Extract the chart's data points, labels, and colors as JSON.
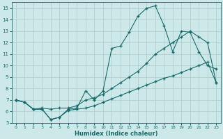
{
  "xlabel": "Humidex (Indice chaleur)",
  "bg_color": "#cce8e8",
  "grid_color": "#aacccc",
  "line_color": "#1a6b6b",
  "xlim": [
    -0.5,
    23.5
  ],
  "ylim": [
    5,
    15.5
  ],
  "yticks": [
    5,
    6,
    7,
    8,
    9,
    10,
    11,
    12,
    13,
    14,
    15
  ],
  "xticks": [
    0,
    1,
    2,
    3,
    4,
    5,
    6,
    7,
    8,
    9,
    10,
    11,
    12,
    13,
    14,
    15,
    16,
    17,
    18,
    19,
    20,
    21,
    22,
    23
  ],
  "line1_x": [
    0,
    1,
    2,
    3,
    4,
    5,
    6,
    7,
    8,
    9,
    10,
    11,
    12,
    13,
    14,
    15,
    16,
    17,
    18,
    19,
    20,
    21,
    22,
    23
  ],
  "line1_y": [
    7.0,
    6.8,
    6.2,
    6.2,
    5.3,
    5.5,
    6.2,
    6.3,
    7.8,
    7.0,
    7.8,
    11.5,
    11.7,
    12.9,
    14.3,
    15.0,
    15.2,
    13.5,
    11.2,
    13.0,
    12.9,
    11.2,
    10.0,
    9.7
  ],
  "line2_x": [
    0,
    1,
    2,
    3,
    4,
    5,
    6,
    7,
    8,
    9,
    10,
    11,
    12,
    13,
    14,
    15,
    16,
    17,
    18,
    19,
    20,
    21,
    22,
    23
  ],
  "line2_y": [
    7.0,
    6.8,
    6.2,
    6.3,
    6.2,
    6.3,
    6.3,
    6.5,
    7.0,
    7.2,
    7.5,
    8.0,
    8.5,
    9.0,
    9.5,
    10.2,
    11.0,
    11.5,
    12.0,
    12.5,
    13.0,
    12.5,
    12.0,
    8.5
  ],
  "line3_x": [
    0,
    1,
    2,
    3,
    4,
    5,
    6,
    7,
    8,
    9,
    10,
    11,
    12,
    13,
    14,
    15,
    16,
    17,
    18,
    19,
    20,
    21,
    22,
    23
  ],
  "line3_y": [
    7.0,
    6.8,
    6.2,
    6.2,
    5.3,
    5.5,
    6.1,
    6.2,
    6.3,
    6.5,
    6.8,
    7.1,
    7.4,
    7.7,
    8.0,
    8.3,
    8.6,
    8.9,
    9.1,
    9.4,
    9.7,
    10.0,
    10.3,
    8.5
  ]
}
